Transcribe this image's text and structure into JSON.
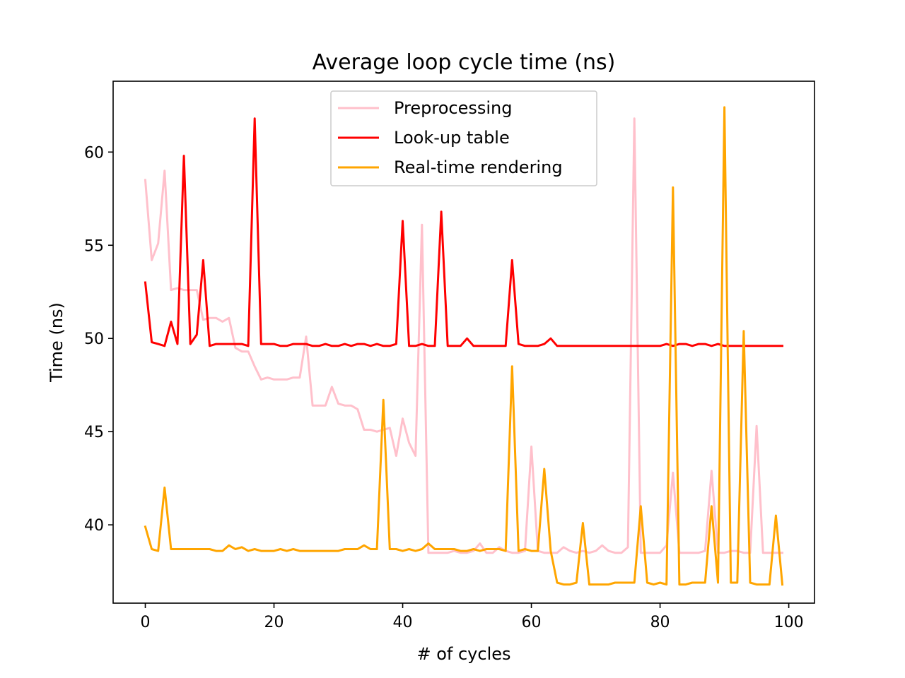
{
  "chart_data": {
    "type": "line",
    "title": "Average loop cycle time (ns)",
    "xlabel": "# of cycles",
    "ylabel": "Time (ns)",
    "xlim": [
      -5,
      104
    ],
    "ylim": [
      35.8,
      63.8
    ],
    "xticks": [
      0,
      20,
      40,
      60,
      80,
      100
    ],
    "yticks": [
      40,
      45,
      50,
      55,
      60
    ],
    "grid": false,
    "legend_position": "top-center",
    "x": [
      0,
      1,
      2,
      3,
      4,
      5,
      6,
      7,
      8,
      9,
      10,
      11,
      12,
      13,
      14,
      15,
      16,
      17,
      18,
      19,
      20,
      21,
      22,
      23,
      24,
      25,
      26,
      27,
      28,
      29,
      30,
      31,
      32,
      33,
      34,
      35,
      36,
      37,
      38,
      39,
      40,
      41,
      42,
      43,
      44,
      45,
      46,
      47,
      48,
      49,
      50,
      51,
      52,
      53,
      54,
      55,
      56,
      57,
      58,
      59,
      60,
      61,
      62,
      63,
      64,
      65,
      66,
      67,
      68,
      69,
      70,
      71,
      72,
      73,
      74,
      75,
      76,
      77,
      78,
      79,
      80,
      81,
      82,
      83,
      84,
      85,
      86,
      87,
      88,
      89,
      90,
      91,
      92,
      93,
      94,
      95,
      96,
      97,
      98,
      99
    ],
    "series": [
      {
        "name": "Preprocessing",
        "color": "#ffc0cb",
        "values": [
          58.5,
          54.2,
          55.1,
          59.0,
          52.6,
          52.7,
          52.6,
          52.6,
          52.6,
          51.0,
          51.1,
          51.1,
          50.9,
          51.1,
          49.5,
          49.3,
          49.3,
          48.5,
          47.8,
          47.9,
          47.8,
          47.8,
          47.8,
          47.9,
          47.9,
          50.1,
          46.4,
          46.4,
          46.4,
          47.4,
          46.5,
          46.4,
          46.4,
          46.2,
          45.1,
          45.1,
          45.0,
          45.1,
          45.2,
          43.7,
          45.7,
          44.4,
          43.7,
          56.1,
          38.5,
          38.5,
          38.5,
          38.5,
          38.6,
          38.5,
          38.5,
          38.6,
          39.0,
          38.5,
          38.5,
          38.8,
          38.6,
          38.5,
          38.5,
          38.6,
          44.2,
          38.6,
          38.5,
          38.5,
          38.5,
          38.8,
          38.6,
          38.5,
          38.6,
          38.5,
          38.6,
          38.9,
          38.6,
          38.5,
          38.5,
          38.8,
          61.8,
          38.5,
          38.5,
          38.5,
          38.5,
          38.9,
          42.8,
          38.5,
          38.5,
          38.5,
          38.5,
          38.6,
          42.9,
          38.5,
          38.5,
          38.6,
          38.6,
          38.5,
          38.5,
          45.3,
          38.5,
          38.5,
          38.5,
          38.5
        ]
      },
      {
        "name": "Look-up table",
        "color": "#ff0000",
        "values": [
          53.0,
          49.8,
          49.7,
          49.6,
          50.9,
          49.7,
          59.8,
          49.7,
          50.2,
          54.2,
          49.6,
          49.7,
          49.7,
          49.7,
          49.7,
          49.7,
          49.6,
          61.8,
          49.7,
          49.7,
          49.7,
          49.6,
          49.6,
          49.7,
          49.7,
          49.7,
          49.6,
          49.6,
          49.7,
          49.6,
          49.6,
          49.7,
          49.6,
          49.7,
          49.7,
          49.6,
          49.7,
          49.6,
          49.6,
          49.7,
          56.3,
          49.6,
          49.6,
          49.7,
          49.6,
          49.6,
          56.8,
          49.6,
          49.6,
          49.6,
          50.0,
          49.6,
          49.6,
          49.6,
          49.6,
          49.6,
          49.6,
          54.2,
          49.7,
          49.6,
          49.6,
          49.6,
          49.7,
          50.0,
          49.6,
          49.6,
          49.6,
          49.6,
          49.6,
          49.6,
          49.6,
          49.6,
          49.6,
          49.6,
          49.6,
          49.6,
          49.6,
          49.6,
          49.6,
          49.6,
          49.6,
          49.7,
          49.6,
          49.7,
          49.7,
          49.6,
          49.7,
          49.7,
          49.6,
          49.7,
          49.6,
          49.6,
          49.6,
          49.6,
          49.6,
          49.6,
          49.6,
          49.6,
          49.6,
          49.6
        ]
      },
      {
        "name": "Real-time rendering",
        "color": "#ffa500",
        "values": [
          39.9,
          38.7,
          38.6,
          42.0,
          38.7,
          38.7,
          38.7,
          38.7,
          38.7,
          38.7,
          38.7,
          38.6,
          38.6,
          38.9,
          38.7,
          38.8,
          38.6,
          38.7,
          38.6,
          38.6,
          38.6,
          38.7,
          38.6,
          38.7,
          38.6,
          38.6,
          38.6,
          38.6,
          38.6,
          38.6,
          38.6,
          38.7,
          38.7,
          38.7,
          38.9,
          38.7,
          38.7,
          46.7,
          38.7,
          38.7,
          38.6,
          38.7,
          38.6,
          38.7,
          39.0,
          38.7,
          38.7,
          38.7,
          38.7,
          38.6,
          38.6,
          38.7,
          38.6,
          38.7,
          38.7,
          38.7,
          38.6,
          48.5,
          38.6,
          38.7,
          38.6,
          38.6,
          43.0,
          38.6,
          36.9,
          36.8,
          36.8,
          36.9,
          40.1,
          36.8,
          36.8,
          36.8,
          36.8,
          36.9,
          36.9,
          36.9,
          36.9,
          41.0,
          36.9,
          36.8,
          36.9,
          36.8,
          58.1,
          36.8,
          36.8,
          36.9,
          36.9,
          36.9,
          41.0,
          36.9,
          62.4,
          36.9,
          36.9,
          50.4,
          36.9,
          36.8,
          36.8,
          36.8,
          40.5,
          36.8
        ]
      }
    ]
  }
}
